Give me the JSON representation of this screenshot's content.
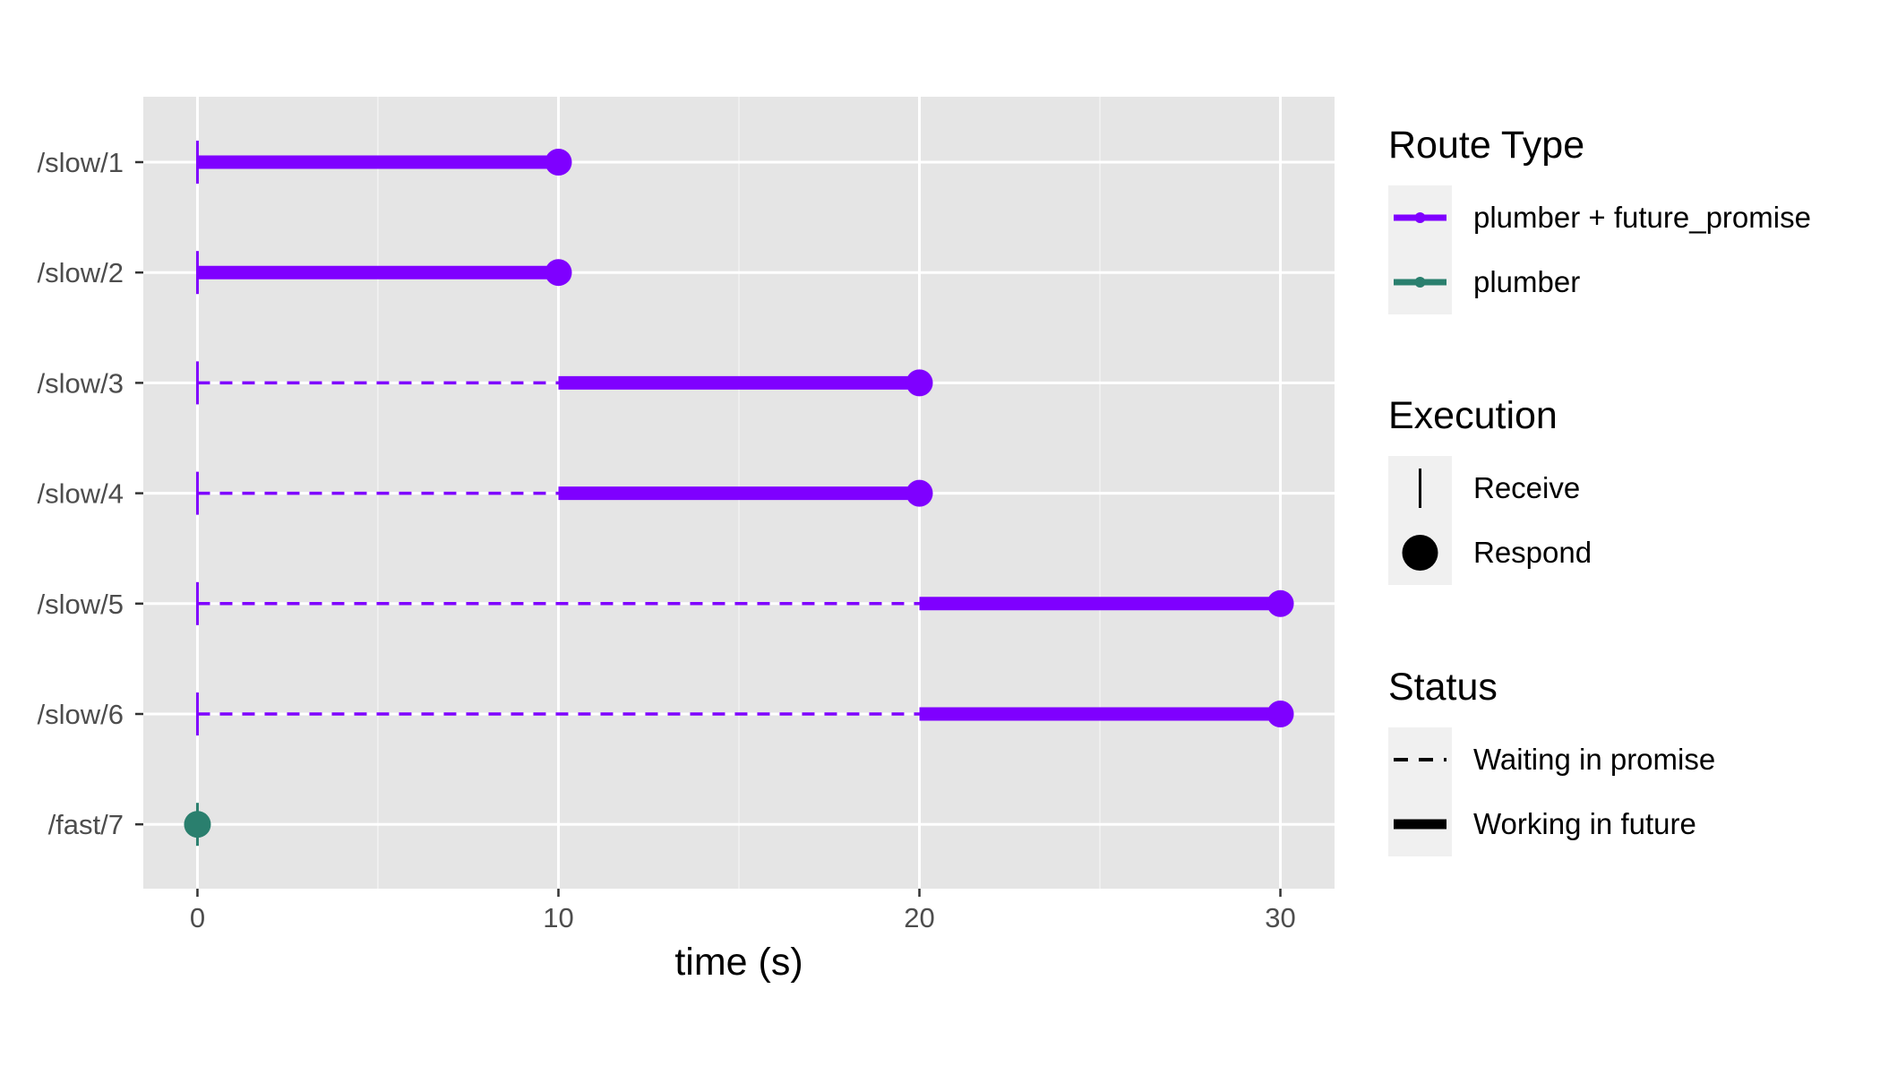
{
  "chart_data": {
    "type": "timeline",
    "xlabel": "time (s)",
    "ylabel": "",
    "xlim": [
      -1.5,
      31.5
    ],
    "x_ticks": [
      0,
      10,
      20,
      30
    ],
    "x_minor_ticks": [
      5,
      15,
      25
    ],
    "grid": true,
    "legend_position": "right",
    "colors": {
      "plumber + future_promise": "#7f00ff",
      "plumber": "#2a7f6e"
    },
    "routes": [
      {
        "route": "/slow/1",
        "type": "plumber + future_promise",
        "receive": 0,
        "work_start": 0,
        "respond": 10
      },
      {
        "route": "/slow/2",
        "type": "plumber + future_promise",
        "receive": 0,
        "work_start": 0,
        "respond": 10
      },
      {
        "route": "/slow/3",
        "type": "plumber + future_promise",
        "receive": 0,
        "work_start": 10,
        "respond": 20
      },
      {
        "route": "/slow/4",
        "type": "plumber + future_promise",
        "receive": 0,
        "work_start": 10,
        "respond": 20
      },
      {
        "route": "/slow/5",
        "type": "plumber + future_promise",
        "receive": 0,
        "work_start": 20,
        "respond": 30
      },
      {
        "route": "/slow/6",
        "type": "plumber + future_promise",
        "receive": 0,
        "work_start": 20,
        "respond": 30
      },
      {
        "route": "/fast/7",
        "type": "plumber",
        "receive": 0,
        "work_start": 0,
        "respond": 0
      }
    ],
    "legends": [
      {
        "title": "Route Type",
        "kind": "color",
        "items": [
          {
            "label": "plumber + future_promise",
            "color": "#7f00ff"
          },
          {
            "label": "plumber",
            "color": "#2a7f6e"
          }
        ]
      },
      {
        "title": "Execution",
        "kind": "shape",
        "items": [
          {
            "label": "Receive",
            "shape": "vline"
          },
          {
            "label": "Respond",
            "shape": "circle"
          }
        ]
      },
      {
        "title": "Status",
        "kind": "linetype",
        "items": [
          {
            "label": "Waiting in promise",
            "linetype": "dashed"
          },
          {
            "label": "Working in future",
            "linetype": "solid"
          }
        ]
      }
    ]
  }
}
